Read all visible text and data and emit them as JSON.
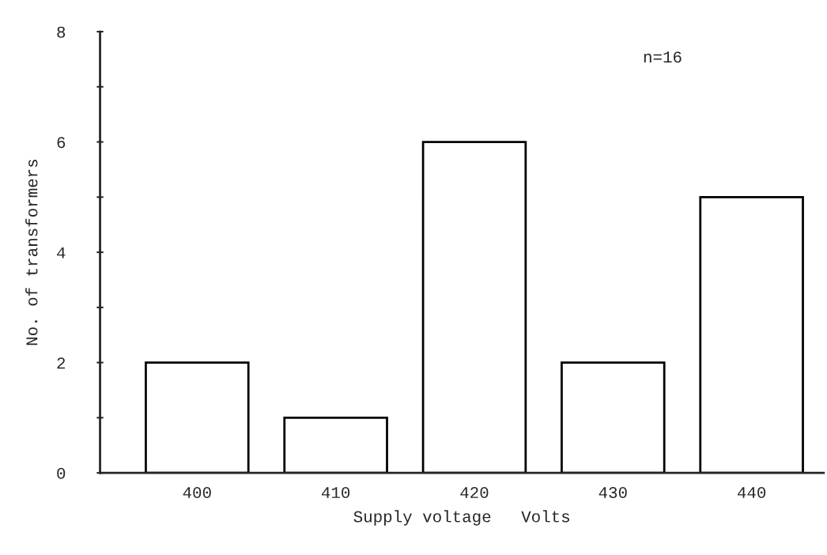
{
  "chart_data": {
    "type": "bar",
    "xlabel": "Supply voltage   Volts",
    "ylabel": "No. of transformers",
    "categories": [
      "400",
      "410",
      "420",
      "430",
      "440"
    ],
    "values": [
      2,
      1,
      6,
      2,
      5
    ],
    "color": "#ffffff",
    "ylim": [
      0,
      8
    ],
    "yticks": [
      0,
      {
        "value": 1,
        "label": null
      },
      2,
      {
        "value": 3,
        "label": null
      },
      4,
      {
        "value": 5,
        "label": null
      },
      6,
      {
        "value": 7,
        "label": null
      },
      8
    ],
    "grid": false,
    "annotations": [
      "n=16"
    ]
  }
}
